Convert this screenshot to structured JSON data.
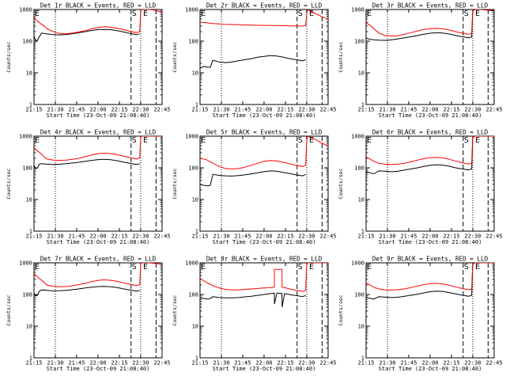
{
  "figure": {
    "x_ticks": [
      "21:15",
      "21:30",
      "21:45",
      "22:00",
      "22:15",
      "22:30",
      "22:45"
    ],
    "y_ticks": [
      "1",
      "10",
      "100",
      "1000"
    ],
    "ylabel": "Counts/sec",
    "xlabel": "Start Time (23-Oct-09 21:08:40)",
    "markers": {
      "start": "S",
      "end": "E"
    }
  },
  "chart_data": [
    {
      "type": "line",
      "title": "Det 1r BLACK = Events, RED = LLD",
      "xlim": [
        0,
        100
      ],
      "ylim": [
        1,
        1000
      ],
      "log_y": true,
      "series": [
        {
          "color": "#000000",
          "x": [
            0,
            1,
            2,
            3,
            4,
            6,
            10,
            15,
            20,
            25,
            30,
            35,
            40,
            45,
            50,
            55,
            60,
            65,
            70,
            75,
            80,
            82.5
          ],
          "y": [
            150,
            110,
            105,
            112,
            135,
            180,
            170,
            160,
            158,
            162,
            172,
            185,
            200,
            218,
            232,
            235,
            230,
            215,
            195,
            175,
            160,
            170
          ]
        },
        {
          "color": "#ff0000",
          "x": [
            0,
            2,
            5,
            8,
            10,
            15,
            20,
            25,
            30,
            35,
            40,
            45,
            50,
            55,
            60,
            65,
            70,
            75,
            80,
            82.5,
            83.3,
            84,
            90,
            95,
            100
          ],
          "y": [
            580,
            460,
            360,
            300,
            250,
            200,
            175,
            172,
            180,
            195,
            215,
            245,
            270,
            285,
            275,
            255,
            230,
            205,
            185,
            200,
            900,
            1000,
            1000,
            950,
            800
          ]
        }
      ],
      "vlines_dotted": [
        16.7,
        83.3
      ],
      "vlines_dashed": [
        75.8,
        95.3
      ]
    },
    {
      "type": "line",
      "title": "Det 2r BLACK = Events, RED = LLD",
      "xlim": [
        0,
        100
      ],
      "ylim": [
        1,
        1000
      ],
      "log_y": true,
      "series": [
        {
          "color": "#000000",
          "x": [
            0,
            3,
            6,
            8,
            10,
            15,
            20,
            25,
            30,
            35,
            40,
            45,
            50,
            55,
            60,
            65,
            70,
            75,
            80,
            82.5
          ],
          "y": [
            14,
            16,
            15,
            15,
            25,
            22,
            21,
            22,
            24,
            26,
            28,
            31,
            33,
            35,
            34,
            31,
            28,
            26,
            24,
            26
          ]
        },
        {
          "color": "#ff0000",
          "x": [
            0,
            5,
            10,
            20,
            30,
            40,
            50,
            60,
            70,
            80,
            82.5,
            83.3,
            84,
            90,
            95,
            100
          ],
          "y": [
            400,
            380,
            360,
            340,
            330,
            320,
            315,
            310,
            305,
            300,
            310,
            700,
            1000,
            750,
            600,
            480
          ]
        }
      ],
      "vlines_dotted": [
        16.7,
        83.3
      ],
      "vlines_dashed": [
        75.8,
        95.3
      ]
    },
    {
      "type": "line",
      "title": "Det 3r BLACK = Events, RED = LLD",
      "xlim": [
        0,
        100
      ],
      "ylim": [
        1,
        1000
      ],
      "log_y": true,
      "series": [
        {
          "color": "#000000",
          "x": [
            0,
            3,
            6,
            10,
            15,
            20,
            25,
            30,
            35,
            40,
            45,
            50,
            55,
            60,
            65,
            70,
            75,
            80,
            82.5,
            83.3,
            85,
            90,
            95,
            100
          ],
          "y": [
            125,
            115,
            110,
            108,
            106,
            110,
            118,
            128,
            138,
            150,
            165,
            178,
            185,
            180,
            168,
            152,
            138,
            128,
            135,
            900,
            1000,
            1000,
            950,
            900
          ]
        },
        {
          "color": "#ff0000",
          "x": [
            0,
            3,
            6,
            10,
            15,
            20,
            25,
            30,
            35,
            40,
            45,
            50,
            55,
            60,
            65,
            70,
            75,
            80,
            82.5,
            83.3,
            85,
            90,
            95,
            100
          ],
          "y": [
            380,
            320,
            250,
            180,
            150,
            145,
            150,
            165,
            185,
            210,
            235,
            250,
            255,
            245,
            225,
            200,
            180,
            165,
            175,
            950,
            1000,
            1000,
            980,
            930
          ]
        }
      ],
      "vlines_dotted": [
        16.7,
        83.3
      ],
      "vlines_dashed": [
        75.8,
        95.3
      ]
    },
    {
      "type": "line",
      "title": "Det 4r BLACK = Events, RED = LLD",
      "xlim": [
        0,
        100
      ],
      "ylim": [
        1,
        1000
      ],
      "log_y": true,
      "series": [
        {
          "color": "#000000",
          "x": [
            0,
            1,
            2,
            3,
            4,
            6,
            10,
            15,
            20,
            25,
            30,
            35,
            40,
            45,
            50,
            55,
            60,
            65,
            70,
            75,
            80,
            82.5
          ],
          "y": [
            120,
            100,
            95,
            105,
            130,
            135,
            130,
            128,
            130,
            135,
            142,
            150,
            160,
            172,
            182,
            185,
            180,
            168,
            152,
            138,
            128,
            135
          ]
        },
        {
          "color": "#ff0000",
          "x": [
            0,
            2,
            5,
            8,
            10,
            15,
            20,
            25,
            30,
            35,
            40,
            45,
            50,
            55,
            60,
            65,
            70,
            75,
            80,
            82.5,
            83.3,
            84,
            90,
            95,
            100
          ],
          "y": [
            420,
            360,
            290,
            220,
            190,
            175,
            172,
            175,
            185,
            200,
            225,
            255,
            280,
            290,
            280,
            260,
            235,
            210,
            190,
            205,
            900,
            1000,
            1000,
            1000,
            1000
          ]
        }
      ],
      "vlines_dotted": [
        16.7,
        83.3
      ],
      "vlines_dashed": [
        75.8,
        95.3
      ]
    },
    {
      "type": "line",
      "title": "Det 5r BLACK = Events, RED = LLD",
      "xlim": [
        0,
        100
      ],
      "ylim": [
        1,
        1000
      ],
      "log_y": true,
      "series": [
        {
          "color": "#000000",
          "x": [
            0,
            3,
            6,
            8,
            10,
            15,
            20,
            25,
            30,
            35,
            40,
            45,
            50,
            55,
            60,
            65,
            70,
            75,
            80,
            82.5
          ],
          "y": [
            30,
            28,
            27,
            28,
            62,
            58,
            56,
            55,
            57,
            60,
            64,
            70,
            76,
            80,
            78,
            72,
            66,
            60,
            56,
            62
          ]
        },
        {
          "color": "#ff0000",
          "x": [
            0,
            5,
            10,
            15,
            20,
            25,
            30,
            35,
            40,
            45,
            50,
            55,
            60,
            65,
            70,
            75,
            80,
            82.5,
            83.3,
            84,
            90,
            95,
            100
          ],
          "y": [
            200,
            180,
            140,
            110,
            95,
            92,
            95,
            105,
            120,
            140,
            160,
            170,
            165,
            150,
            135,
            120,
            110,
            120,
            700,
            1000,
            800,
            600,
            500
          ]
        }
      ],
      "vlines_dotted": [
        16.7,
        83.3
      ],
      "vlines_dashed": [
        75.8,
        95.3
      ]
    },
    {
      "type": "line",
      "title": "Det 6r BLACK = Events, RED = LLD",
      "xlim": [
        0,
        100
      ],
      "ylim": [
        1,
        1000
      ],
      "log_y": true,
      "series": [
        {
          "color": "#000000",
          "x": [
            0,
            3,
            6,
            10,
            15,
            20,
            25,
            30,
            35,
            40,
            45,
            50,
            55,
            60,
            65,
            70,
            75,
            80,
            82.5,
            83.3,
            85,
            90,
            95,
            100
          ],
          "y": [
            75,
            70,
            65,
            80,
            78,
            75,
            78,
            85,
            92,
            100,
            110,
            120,
            125,
            122,
            112,
            100,
            92,
            86,
            92,
            900,
            1000,
            1000,
            1000,
            1000
          ]
        },
        {
          "color": "#ff0000",
          "x": [
            0,
            3,
            6,
            10,
            15,
            20,
            25,
            30,
            35,
            40,
            45,
            50,
            55,
            60,
            65,
            70,
            75,
            80,
            82.5,
            83.3,
            85,
            90,
            95,
            100
          ],
          "y": [
            220,
            190,
            160,
            140,
            130,
            128,
            132,
            140,
            155,
            175,
            195,
            210,
            215,
            205,
            185,
            165,
            145,
            132,
            140,
            950,
            1000,
            1000,
            1000,
            1000
          ]
        }
      ],
      "vlines_dotted": [
        16.7,
        83.3
      ],
      "vlines_dashed": [
        75.8,
        95.3
      ]
    },
    {
      "type": "line",
      "title": "Det 7r BLACK = Events, RED = LLD",
      "xlim": [
        0,
        100
      ],
      "ylim": [
        1,
        1000
      ],
      "log_y": true,
      "series": [
        {
          "color": "#000000",
          "x": [
            0,
            1,
            2,
            3,
            4,
            6,
            10,
            15,
            20,
            25,
            30,
            35,
            40,
            45,
            50,
            55,
            60,
            65,
            70,
            75,
            80,
            82.5
          ],
          "y": [
            110,
            95,
            90,
            98,
            125,
            140,
            135,
            130,
            132,
            136,
            142,
            150,
            160,
            170,
            178,
            180,
            175,
            165,
            150,
            138,
            128,
            135
          ]
        },
        {
          "color": "#ff0000",
          "x": [
            0,
            2,
            5,
            8,
            10,
            15,
            20,
            25,
            30,
            35,
            40,
            45,
            50,
            55,
            60,
            65,
            70,
            75,
            80,
            82.5,
            83.3,
            84,
            90,
            95,
            100
          ],
          "y": [
            450,
            380,
            300,
            240,
            200,
            180,
            175,
            178,
            188,
            205,
            225,
            255,
            280,
            290,
            280,
            260,
            235,
            210,
            190,
            205,
            900,
            1000,
            1000,
            950,
            900
          ]
        }
      ],
      "vlines_dotted": [
        16.7,
        83.3
      ],
      "vlines_dashed": [
        75.8,
        95.3
      ]
    },
    {
      "type": "line",
      "title": "Det 8r BLACK = Events, RED = LLD",
      "xlim": [
        0,
        100
      ],
      "ylim": [
        1,
        1000
      ],
      "log_y": true,
      "series": [
        {
          "color": "#000000",
          "x": [
            0,
            3,
            6,
            8,
            10,
            15,
            20,
            25,
            30,
            35,
            40,
            45,
            50,
            55,
            58,
            58.1,
            60,
            64,
            64.1,
            66,
            70,
            75,
            80,
            82.5
          ],
          "y": [
            80,
            75,
            72,
            74,
            85,
            80,
            78,
            78,
            80,
            84,
            88,
            94,
            100,
            108,
            110,
            50,
            110,
            108,
            40,
            106,
            100,
            92,
            86,
            92
          ]
        },
        {
          "color": "#ff0000",
          "x": [
            0,
            3,
            6,
            10,
            15,
            20,
            25,
            30,
            35,
            40,
            45,
            50,
            55,
            58,
            58.1,
            64,
            64.1,
            66,
            70,
            75,
            80,
            82.5,
            83.3,
            84,
            90,
            95,
            100
          ],
          "y": [
            320,
            270,
            230,
            190,
            160,
            145,
            140,
            140,
            145,
            150,
            155,
            160,
            165,
            170,
            620,
            620,
            170,
            165,
            150,
            135,
            125,
            135,
            900,
            1000,
            1000,
            1000,
            1000
          ]
        }
      ],
      "vlines_dotted": [
        16.7,
        83.3
      ],
      "vlines_dashed": [
        75.8,
        95.3
      ]
    },
    {
      "type": "line",
      "title": "Det 9r BLACK = Events, RED = LLD",
      "xlim": [
        0,
        100
      ],
      "ylim": [
        1,
        1000
      ],
      "log_y": true,
      "series": [
        {
          "color": "#000000",
          "x": [
            0,
            3,
            6,
            10,
            15,
            20,
            25,
            30,
            35,
            40,
            45,
            50,
            55,
            60,
            65,
            70,
            75,
            80,
            82.5,
            83.3,
            85,
            90,
            95,
            100
          ],
          "y": [
            82,
            76,
            72,
            85,
            82,
            80,
            82,
            88,
            95,
            102,
            112,
            122,
            128,
            125,
            115,
            104,
            95,
            88,
            94,
            900,
            1000,
            1000,
            1000,
            1000
          ]
        },
        {
          "color": "#ff0000",
          "x": [
            0,
            3,
            6,
            10,
            15,
            20,
            25,
            30,
            35,
            40,
            45,
            50,
            55,
            60,
            65,
            70,
            75,
            80,
            82.5,
            83.3,
            85,
            90,
            95,
            100
          ],
          "y": [
            230,
            200,
            170,
            150,
            140,
            138,
            142,
            150,
            165,
            185,
            205,
            220,
            225,
            215,
            195,
            175,
            155,
            142,
            150,
            950,
            1000,
            1000,
            1000,
            1000
          ]
        }
      ],
      "vlines_dotted": [
        16.7,
        83.3
      ],
      "vlines_dashed": [
        75.8,
        95.3
      ]
    }
  ]
}
